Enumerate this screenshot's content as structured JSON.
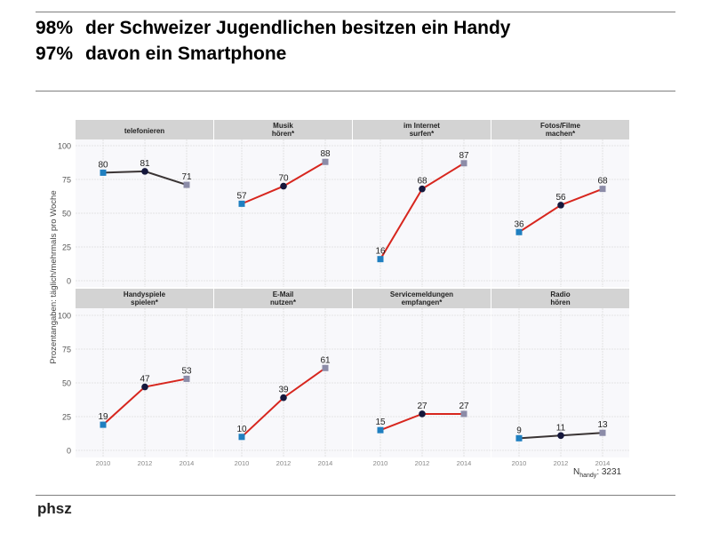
{
  "header": {
    "line1_pct": "98%",
    "line1_text": "der Schweizer Jugendlichen besitzen ein Handy",
    "line2_pct": "97%",
    "line2_text": "davon ein Smartphone"
  },
  "footer": {
    "logo": "phsz"
  },
  "chart_data": {
    "type": "line",
    "ylabel": "Prozentangaben: täglich/mehrmals pro Woche",
    "ylim": [
      0,
      100
    ],
    "yticks": [
      "0",
      "25",
      "50",
      "75",
      "100"
    ],
    "x": [
      "2010",
      "2012",
      "2014"
    ],
    "grid": true,
    "note_main": "N",
    "note_sub": "handy",
    "note_value": ": 3231",
    "colors": {
      "significant_line": "#d7261e",
      "line": "#3a3434",
      "m2010": "#1f7fc0",
      "m2012": "#15173c",
      "m2014": "#8c8ca8",
      "strip": "#d3d3d3",
      "panel": "#f8f8fb"
    },
    "panels": [
      {
        "title": [
          "telefonieren"
        ],
        "significant": false,
        "values": [
          80,
          81,
          71
        ]
      },
      {
        "title": [
          "Musik",
          "hören*"
        ],
        "significant": true,
        "values": [
          57,
          70,
          88
        ]
      },
      {
        "title": [
          "im Internet",
          "surfen*"
        ],
        "significant": true,
        "values": [
          16,
          68,
          87
        ]
      },
      {
        "title": [
          "Fotos/Filme",
          "machen*"
        ],
        "significant": true,
        "values": [
          36,
          56,
          68
        ]
      },
      {
        "title": [
          "Handyspiele",
          "spielen*"
        ],
        "significant": true,
        "values": [
          19,
          47,
          53
        ]
      },
      {
        "title": [
          "E-Mail",
          "nutzen*"
        ],
        "significant": true,
        "values": [
          10,
          39,
          61
        ]
      },
      {
        "title": [
          "Servicemeldungen",
          "empfangen*"
        ],
        "significant": true,
        "values": [
          15,
          27,
          27
        ]
      },
      {
        "title": [
          "Radio",
          "hören"
        ],
        "significant": false,
        "values": [
          9,
          11,
          13
        ]
      }
    ]
  }
}
